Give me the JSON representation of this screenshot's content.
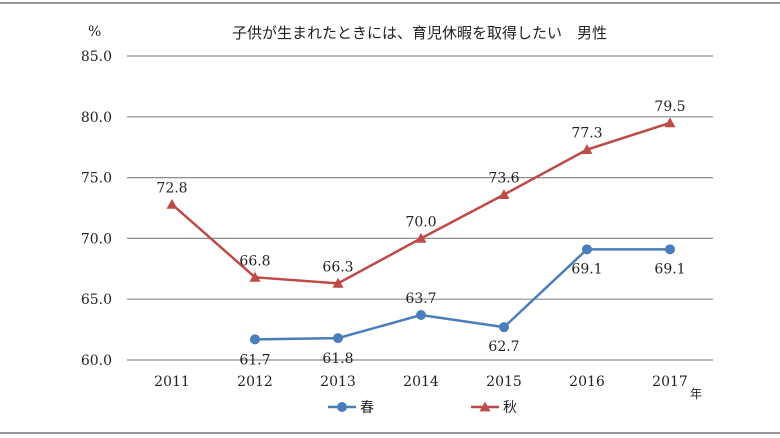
{
  "chart_data": {
    "type": "line",
    "title": "子供が生まれたときには、育児休暇を取得したい　男性",
    "ylabel": "%",
    "xlabel": "年",
    "categories": [
      "2011",
      "2012",
      "2013",
      "2014",
      "2015",
      "2016",
      "2017"
    ],
    "ylim": [
      60,
      85
    ],
    "yticks": [
      "60.0",
      "65.0",
      "70.0",
      "75.0",
      "80.0",
      "85.0"
    ],
    "grid": true,
    "legend_position": "bottom",
    "series": [
      {
        "name": "春",
        "marker": "circle",
        "color": "#4a7ebb",
        "values": [
          null,
          61.7,
          61.8,
          63.7,
          62.7,
          69.1,
          69.1
        ],
        "labels": [
          "",
          "61.7",
          "61.8",
          "63.7",
          "62.7",
          "69.1",
          "69.1"
        ]
      },
      {
        "name": "秋",
        "marker": "triangle",
        "color": "#be4b48",
        "values": [
          72.8,
          66.8,
          66.3,
          70.0,
          73.6,
          77.3,
          79.5
        ],
        "labels": [
          "72.8",
          "66.8",
          "66.3",
          "70.0",
          "73.6",
          "77.3",
          "79.5"
        ]
      }
    ]
  }
}
